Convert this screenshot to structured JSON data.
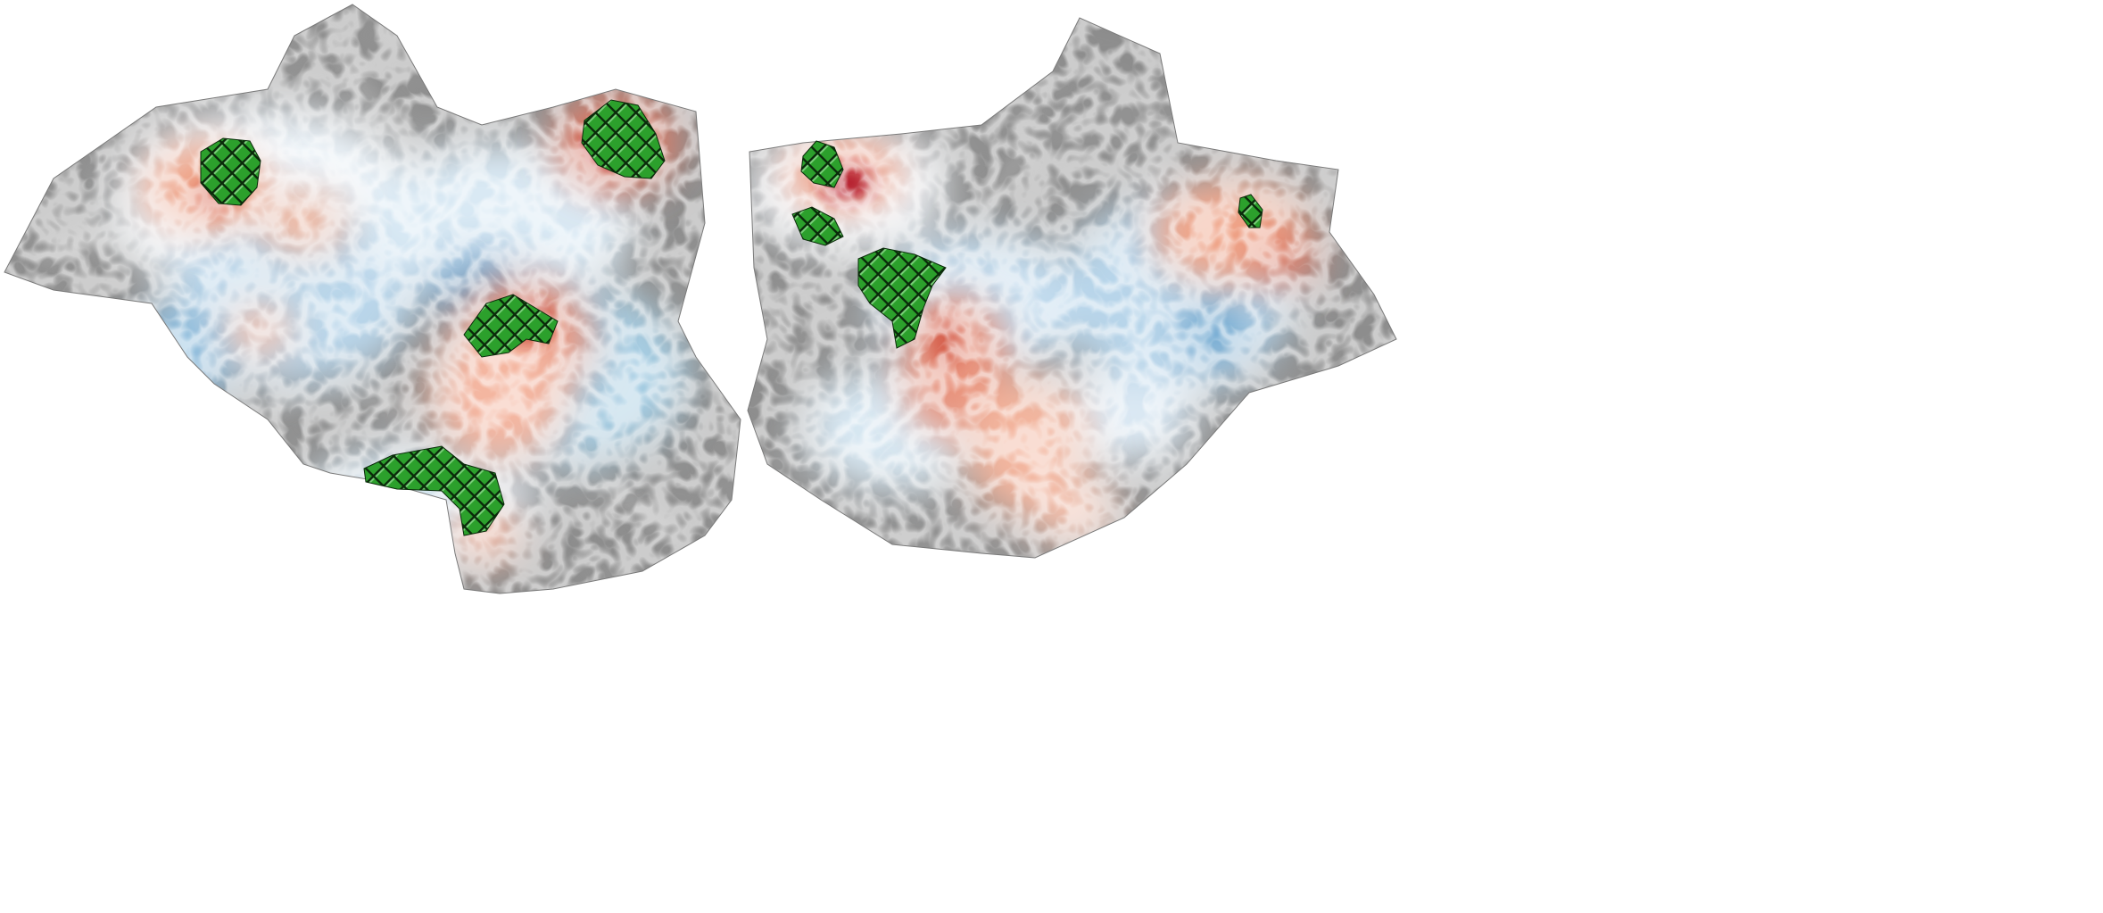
{
  "image": {
    "description_type": "flattened-cortical-map",
    "background_color": "#ffffff",
    "cortex_base_colors": [
      "#4d4d4d",
      "#6e6e6e",
      "#9a9a9a",
      "#c4c4c4"
    ],
    "colormap": {
      "positive": [
        "#fbe3d8",
        "#f4a582",
        "#d6604d",
        "#b2182b",
        "#67001f"
      ],
      "negative": [
        "#e3eef6",
        "#a6cde3",
        "#6aa7d0",
        "#2f7bb6"
      ]
    },
    "roi_hatch_fill": "#2ca02c",
    "roi_hatch_line": "#000000",
    "hemispheres": [
      "left-hemisphere",
      "right-hemisphere"
    ]
  }
}
